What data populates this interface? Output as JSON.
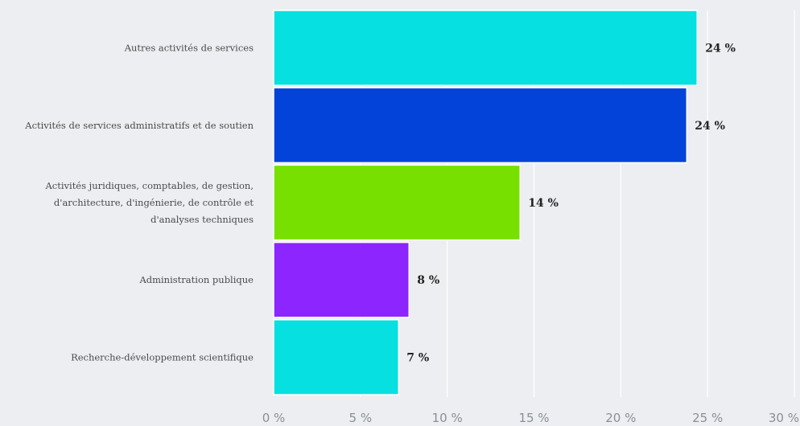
{
  "chart_data": {
    "type": "bar",
    "orientation": "horizontal",
    "categories": [
      "Autres activités de services",
      "Activités de services administratifs et de soutien",
      "Activités juridiques, comptables, de gestion, d'architecture, d'ingénierie, de contrôle et d'analyses techniques",
      "Administration publique",
      "Recherche-développement scientifique"
    ],
    "category_lines": [
      [
        "Autres activités de services"
      ],
      [
        "Activités de services administratifs et de soutien"
      ],
      [
        "Activités juridiques, comptables, de gestion,",
        "d'architecture, d'ingénierie, de contrôle et",
        "d'analyses techniques"
      ],
      [
        "Administration publique"
      ],
      [
        "Recherche-développement scientifique"
      ]
    ],
    "values": [
      24.4,
      23.8,
      14.2,
      7.8,
      7.2
    ],
    "data_labels": [
      "24 %",
      "24 %",
      "14 %",
      "8 %",
      "7 %"
    ],
    "colors": [
      "#07e0e0",
      "#0443d9",
      "#77e000",
      "#8c25ff",
      "#07e0e0"
    ],
    "xlim": [
      0,
      30
    ],
    "x_ticks": [
      0,
      5,
      10,
      15,
      20,
      25,
      30
    ],
    "x_tick_labels": [
      "0 %",
      "5 %",
      "10 %",
      "15 %",
      "20 %",
      "25 %",
      "30 %"
    ],
    "grid": "vertical",
    "title": "",
    "xlabel": "",
    "ylabel": ""
  }
}
